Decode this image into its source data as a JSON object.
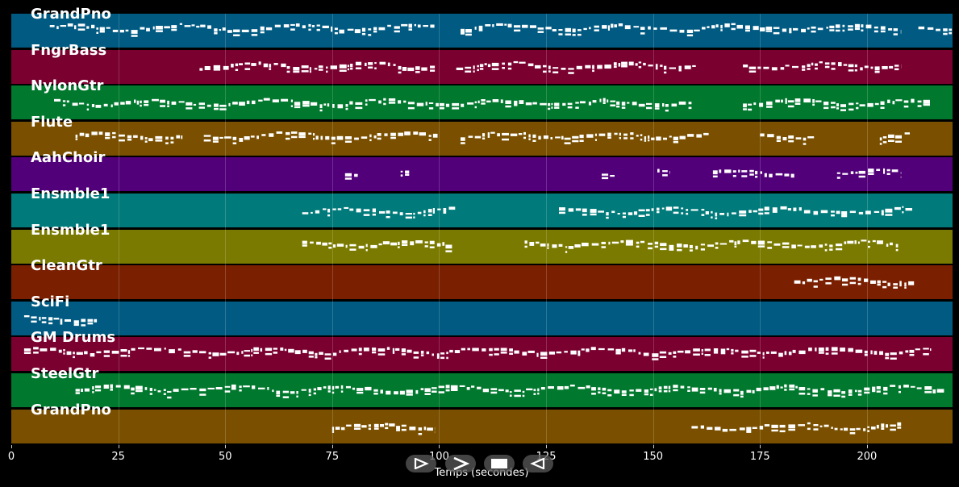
{
  "chart_data": {
    "type": "piano-roll",
    "xlabel": "Temps (secondes)",
    "xlim": [
      0,
      220
    ],
    "xticks": [
      0,
      25,
      50,
      75,
      100,
      125,
      150,
      175,
      200
    ],
    "tracks": [
      {
        "name": "GrandPno",
        "color": "#005a82",
        "segments": [
          [
            9,
            99
          ],
          [
            105,
            208
          ],
          [
            212,
            220
          ]
        ]
      },
      {
        "name": "FngrBass",
        "color": "#7a0030",
        "segments": [
          [
            44,
            99
          ],
          [
            104,
            160
          ],
          [
            171,
            208
          ]
        ]
      },
      {
        "name": "NylonGtr",
        "color": "#00782d",
        "segments": [
          [
            10,
            159
          ],
          [
            171,
            215
          ]
        ]
      },
      {
        "name": "Flute",
        "color": "#7a5000",
        "segments": [
          [
            15,
            40
          ],
          [
            45,
            100
          ],
          [
            105,
            163
          ],
          [
            175,
            188
          ],
          [
            203,
            210
          ]
        ]
      },
      {
        "name": "AahChoir",
        "color": "#52007a",
        "segments": [
          [
            78,
            81
          ],
          [
            91,
            93
          ],
          [
            138,
            141
          ],
          [
            151,
            154
          ],
          [
            164,
            183
          ],
          [
            193,
            208
          ]
        ]
      },
      {
        "name": "Ensmble1",
        "color": "#007a7a",
        "segments": [
          [
            68,
            104
          ],
          [
            128,
            211
          ]
        ]
      },
      {
        "name": "Ensmble1",
        "color": "#7a7a00",
        "segments": [
          [
            68,
            103
          ],
          [
            120,
            208
          ]
        ]
      },
      {
        "name": "CleanGtr",
        "color": "#7a2000",
        "segments": [
          [
            183,
            211
          ]
        ]
      },
      {
        "name": "SciFi",
        "color": "#005a82",
        "segments": [
          [
            3,
            20
          ]
        ]
      },
      {
        "name": "GM Drums",
        "color": "#7a0030",
        "segments": [
          [
            3,
            215
          ]
        ]
      },
      {
        "name": "SteelGtr",
        "color": "#00782d",
        "segments": [
          [
            15,
            218
          ]
        ]
      },
      {
        "name": "GrandPno",
        "color": "#7a5000",
        "segments": [
          [
            75,
            99
          ],
          [
            159,
            208
          ]
        ]
      }
    ]
  },
  "controls": {
    "play_icon": "play-triangle-icon",
    "forward_icon": "chevron-right-icon",
    "stop_icon": "stop-square-icon",
    "rewind_icon": "rewind-triangle-icon"
  }
}
